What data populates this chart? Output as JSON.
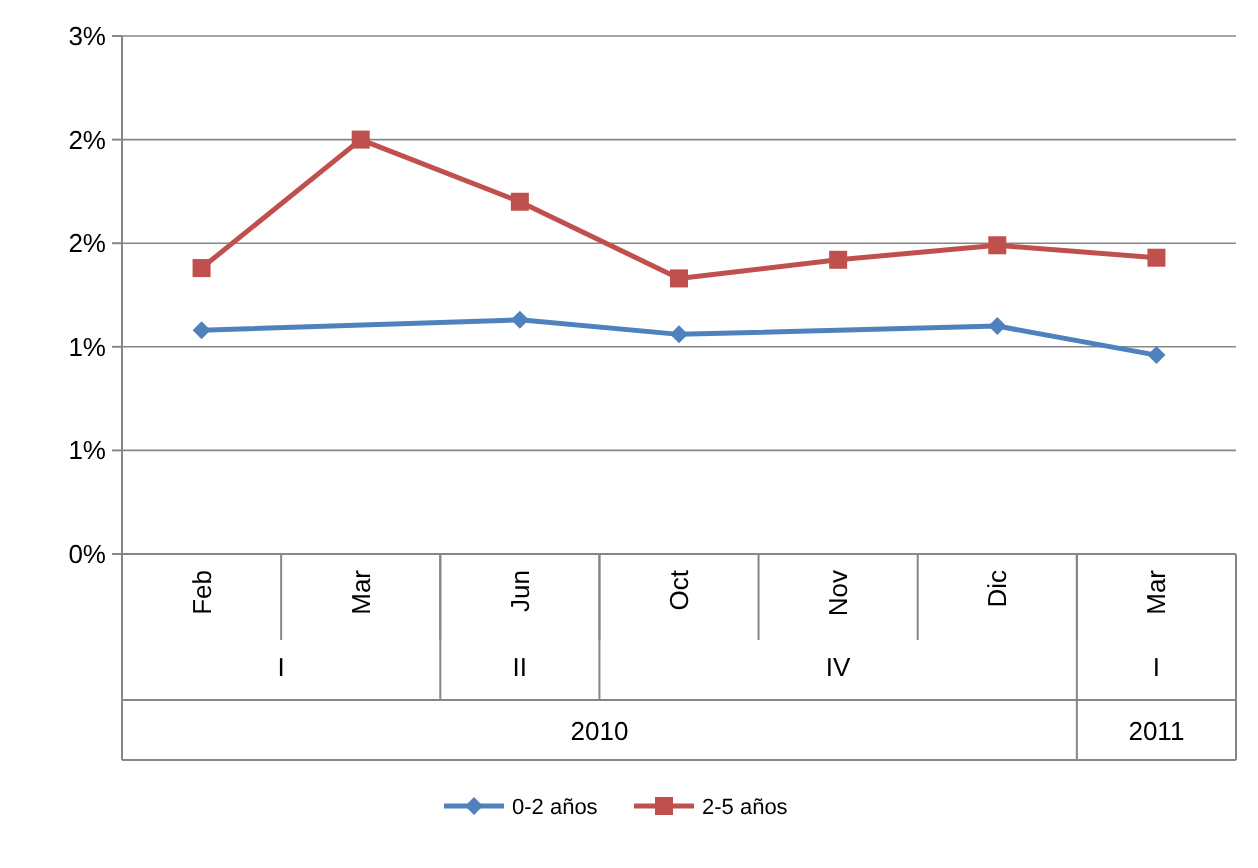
{
  "chart_data": {
    "type": "line",
    "categories": [
      "Feb",
      "Mar",
      "Jun",
      "Oct",
      "Nov",
      "Dic",
      "Mar"
    ],
    "series": [
      {
        "name": "0-2 años",
        "color": "#4f81bd",
        "marker": "diamond",
        "values": [
          1.08,
          null,
          1.13,
          1.06,
          null,
          1.1,
          0.96
        ]
      },
      {
        "name": "2-5 años",
        "color": "#c0504d",
        "marker": "square",
        "values": [
          1.38,
          2.0,
          1.7,
          1.33,
          1.42,
          1.49,
          1.43
        ]
      }
    ],
    "ylim": [
      0,
      2.5
    ],
    "yticks": [
      {
        "value": 0,
        "label": "0%"
      },
      {
        "value": 0.5,
        "label": "1%"
      },
      {
        "value": 1,
        "label": "1%"
      },
      {
        "value": 1.5,
        "label": "2%"
      },
      {
        "value": 2,
        "label": "2%"
      },
      {
        "value": 2.5,
        "label": "3%"
      }
    ],
    "grid": "y",
    "legend": "bottom",
    "annotations": [
      "I",
      "II",
      "IV",
      "I",
      "2010",
      "2011"
    ]
  }
}
